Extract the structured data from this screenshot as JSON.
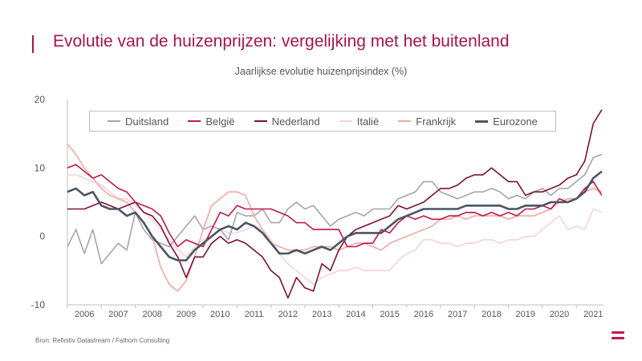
{
  "header": {
    "title": "Evolutie van de huizenprijzen: vergelijking met het buitenland",
    "subtitle": "Jaarlijkse evolutie huizenprijsindex (%)"
  },
  "footer": {
    "source": "Bron: Refinitiv Datastream / Fathom Consulting",
    "menu_icon": "menu-icon"
  },
  "colors": {
    "accent": "#a3164d",
    "Duitsland": "#a6a6a6",
    "België": "#c0184c",
    "Nederland": "#7a1234",
    "Italië": "#f6d3da",
    "Frankrijk": "#f2a9a0",
    "Eurozone": "#4a5563"
  },
  "chart_data": {
    "type": "line",
    "title": "Jaarlijkse evolutie huizenprijsindex (%)",
    "xlabel": "",
    "ylabel": "",
    "xlim": [
      2005.5,
      2021.3
    ],
    "ylim": [
      -10,
      20
    ],
    "y_ticks": [
      20,
      10,
      0,
      -10
    ],
    "x_ticks": [
      2006,
      2007,
      2008,
      2009,
      2010,
      2011,
      2012,
      2013,
      2014,
      2015,
      2016,
      2017,
      2018,
      2019,
      2020,
      2021
    ],
    "legend_position": "top",
    "series": [
      {
        "name": "Duitsland",
        "x": [
          2005.5,
          2005.75,
          2006,
          2006.25,
          2006.5,
          2006.75,
          2007,
          2007.25,
          2007.5,
          2007.75,
          2008,
          2008.25,
          2008.5,
          2008.75,
          2009,
          2009.25,
          2009.5,
          2009.75,
          2010,
          2010.25,
          2010.5,
          2010.75,
          2011,
          2011.25,
          2011.5,
          2011.75,
          2012,
          2012.25,
          2012.5,
          2012.75,
          2013,
          2013.25,
          2013.5,
          2013.75,
          2014,
          2014.25,
          2014.5,
          2014.75,
          2015,
          2015.25,
          2015.5,
          2015.75,
          2016,
          2016.25,
          2016.5,
          2016.75,
          2017,
          2017.25,
          2017.5,
          2017.75,
          2018,
          2018.25,
          2018.5,
          2018.75,
          2019,
          2019.25,
          2019.5,
          2019.75,
          2020,
          2020.25,
          2020.5,
          2020.75,
          2021,
          2021.25
        ],
        "y": [
          -1.5,
          1,
          -2.5,
          1,
          -4,
          -2.5,
          -1,
          -2,
          3.5,
          1,
          -0.5,
          -1,
          -1.5,
          0,
          1.5,
          3,
          1,
          1.5,
          1,
          -0.5,
          3.5,
          3,
          3,
          4,
          2,
          2,
          4,
          5,
          4,
          4.5,
          3,
          1.5,
          2.5,
          3,
          3.5,
          3,
          4,
          4,
          4,
          5.5,
          6,
          6.5,
          8,
          8,
          6.5,
          6,
          5.5,
          6,
          6.5,
          6.5,
          7,
          6.5,
          5.5,
          6,
          5.5,
          6.5,
          7,
          6,
          7,
          7,
          8,
          9,
          11.5,
          12
        ]
      },
      {
        "name": "België",
        "x": [
          2005.5,
          2005.75,
          2006,
          2006.25,
          2006.5,
          2006.75,
          2007,
          2007.25,
          2007.5,
          2007.75,
          2008,
          2008.25,
          2008.5,
          2008.75,
          2009,
          2009.25,
          2009.5,
          2009.75,
          2010,
          2010.25,
          2010.5,
          2010.75,
          2011,
          2011.25,
          2011.5,
          2011.75,
          2012,
          2012.25,
          2012.5,
          2012.75,
          2013,
          2013.25,
          2013.5,
          2013.75,
          2014,
          2014.25,
          2014.5,
          2014.75,
          2015,
          2015.25,
          2015.5,
          2015.75,
          2016,
          2016.25,
          2016.5,
          2016.75,
          2017,
          2017.25,
          2017.5,
          2017.75,
          2018,
          2018.25,
          2018.5,
          2018.75,
          2019,
          2019.25,
          2019.5,
          2019.75,
          2020,
          2020.25,
          2020.5,
          2020.75,
          2021,
          2021.25
        ],
        "y": [
          10,
          10.5,
          9.5,
          8.5,
          9,
          8,
          7,
          6.5,
          5,
          4.5,
          4,
          3,
          0.5,
          -1.5,
          -0.5,
          -1,
          -1.5,
          1,
          3.5,
          3,
          4.5,
          4,
          4,
          4,
          4,
          3.5,
          3,
          2,
          2,
          1,
          1,
          1,
          1,
          -1.5,
          -1.5,
          -1,
          -1,
          1,
          0.5,
          2,
          3,
          2.5,
          3,
          2.5,
          2.5,
          3,
          3,
          3.5,
          3.5,
          3,
          3.5,
          3,
          3.5,
          3,
          4,
          4,
          4.5,
          4,
          5.5,
          5,
          5.5,
          7,
          8,
          6
        ]
      },
      {
        "name": "Nederland",
        "x": [
          2005.5,
          2005.75,
          2006,
          2006.25,
          2006.5,
          2006.75,
          2007,
          2007.25,
          2007.5,
          2007.75,
          2008,
          2008.25,
          2008.5,
          2008.75,
          2009,
          2009.25,
          2009.5,
          2009.75,
          2010,
          2010.25,
          2010.5,
          2010.75,
          2011,
          2011.25,
          2011.5,
          2011.75,
          2012,
          2012.25,
          2012.5,
          2012.75,
          2013,
          2013.25,
          2013.5,
          2013.75,
          2014,
          2014.25,
          2014.5,
          2014.75,
          2015,
          2015.25,
          2015.5,
          2015.75,
          2016,
          2016.25,
          2016.5,
          2016.75,
          2017,
          2017.25,
          2017.5,
          2017.75,
          2018,
          2018.25,
          2018.5,
          2018.75,
          2019,
          2019.25,
          2019.5,
          2019.75,
          2020,
          2020.25,
          2020.5,
          2020.75,
          2021,
          2021.25
        ],
        "y": [
          4,
          4,
          4,
          4.5,
          5,
          4.5,
          4,
          4.5,
          5,
          3.5,
          3,
          1.5,
          -1,
          -3,
          -6,
          -3,
          -3,
          -1,
          0,
          -1,
          -0.5,
          -1,
          -2,
          -3,
          -5,
          -6,
          -9,
          -6,
          -7.5,
          -8,
          -4,
          -5,
          -2,
          0,
          1,
          1.5,
          2,
          2.5,
          3,
          4.5,
          4,
          4.5,
          5,
          6,
          7,
          7,
          7.5,
          8.5,
          9,
          9,
          10,
          9,
          8,
          8,
          6,
          6.5,
          6.5,
          7,
          7.5,
          8.5,
          9,
          11,
          16.5,
          18.5
        ]
      },
      {
        "name": "Italië",
        "x": [
          2005.5,
          2005.75,
          2006,
          2006.25,
          2006.5,
          2006.75,
          2007,
          2007.25,
          2007.5,
          2007.75,
          2008,
          2008.25,
          2008.5,
          2008.75,
          2009,
          2009.25,
          2009.5,
          2009.75,
          2010,
          2010.25,
          2010.5,
          2010.75,
          2011,
          2011.25,
          2011.5,
          2011.75,
          2012,
          2012.25,
          2012.5,
          2012.75,
          2013,
          2013.25,
          2013.5,
          2013.75,
          2014,
          2014.25,
          2014.5,
          2014.75,
          2015,
          2015.25,
          2015.5,
          2015.75,
          2016,
          2016.25,
          2016.5,
          2016.75,
          2017,
          2017.25,
          2017.5,
          2017.75,
          2018,
          2018.25,
          2018.5,
          2018.75,
          2019,
          2019.25,
          2019.5,
          2019.75,
          2020,
          2020.25,
          2020.5,
          2020.75,
          2021,
          2021.25
        ],
        "y": [
          9,
          9,
          8.5,
          8,
          7.5,
          6.5,
          5.5,
          5.5,
          4.5,
          3.5,
          2.5,
          1,
          -0.5,
          -2,
          -3,
          -1.5,
          -0.5,
          0,
          1,
          0.5,
          0.5,
          1,
          1.5,
          1,
          -0.5,
          -2.5,
          -4,
          -5,
          -6,
          -7,
          -6,
          -5.5,
          -5,
          -5,
          -4.5,
          -5,
          -5,
          -5,
          -5,
          -3.5,
          -2.5,
          -2,
          -0.5,
          -0.5,
          -1,
          -1,
          -1.5,
          -1,
          -1,
          -0.5,
          -0.5,
          -1,
          -0.5,
          -0.5,
          0,
          0,
          1,
          2,
          3,
          1,
          1.5,
          1,
          4,
          3.5
        ]
      },
      {
        "name": "Frankrijk",
        "x": [
          2005.5,
          2005.75,
          2006,
          2006.25,
          2006.5,
          2006.75,
          2007,
          2007.25,
          2007.5,
          2007.75,
          2008,
          2008.25,
          2008.5,
          2008.75,
          2009,
          2009.25,
          2009.5,
          2009.75,
          2010,
          2010.25,
          2010.5,
          2010.75,
          2011,
          2011.25,
          2011.5,
          2011.75,
          2012,
          2012.25,
          2012.5,
          2012.75,
          2013,
          2013.25,
          2013.5,
          2013.75,
          2014,
          2014.25,
          2014.5,
          2014.75,
          2015,
          2015.25,
          2015.5,
          2015.75,
          2016,
          2016.25,
          2016.5,
          2016.75,
          2017,
          2017.25,
          2017.5,
          2017.75,
          2018,
          2018.25,
          2018.5,
          2018.75,
          2019,
          2019.25,
          2019.5,
          2019.75,
          2020,
          2020.25,
          2020.5,
          2020.75,
          2021,
          2021.25
        ],
        "y": [
          13.5,
          12,
          10,
          8.5,
          7,
          6,
          5.5,
          5,
          3.5,
          2,
          0,
          -4.5,
          -7,
          -8,
          -6.5,
          -3,
          1,
          4.5,
          5.5,
          6.5,
          6.5,
          6,
          3,
          1,
          -1,
          -1.5,
          -2,
          -2,
          -2,
          -1.5,
          -1.5,
          -1.5,
          -2,
          -1.5,
          -1,
          -1,
          -1.5,
          -2,
          -1,
          -0.5,
          0,
          0.5,
          1,
          1.5,
          2.5,
          2.5,
          3,
          2.5,
          3,
          3,
          3,
          3,
          2.5,
          3,
          3,
          3,
          3.5,
          4,
          5,
          5.5,
          5.5,
          6.5,
          7,
          6.5
        ]
      },
      {
        "name": "Eurozone",
        "x": [
          2005.5,
          2005.75,
          2006,
          2006.25,
          2006.5,
          2006.75,
          2007,
          2007.25,
          2007.5,
          2007.75,
          2008,
          2008.25,
          2008.5,
          2008.75,
          2009,
          2009.25,
          2009.5,
          2009.75,
          2010,
          2010.25,
          2010.5,
          2010.75,
          2011,
          2011.25,
          2011.5,
          2011.75,
          2012,
          2012.25,
          2012.5,
          2012.75,
          2013,
          2013.25,
          2013.5,
          2013.75,
          2014,
          2014.25,
          2014.5,
          2014.75,
          2015,
          2015.25,
          2015.5,
          2015.75,
          2016,
          2016.25,
          2016.5,
          2016.75,
          2017,
          2017.25,
          2017.5,
          2017.75,
          2018,
          2018.25,
          2018.5,
          2018.75,
          2019,
          2019.25,
          2019.5,
          2019.75,
          2020,
          2020.25,
          2020.5,
          2020.75,
          2021,
          2021.25
        ],
        "y": [
          6.5,
          7,
          6,
          6.5,
          4.5,
          4,
          4,
          3,
          3.5,
          2,
          0,
          -1.5,
          -3,
          -3.5,
          -3.5,
          -2,
          -1,
          0,
          1,
          1.5,
          1,
          2,
          1.5,
          0.5,
          -1,
          -2.5,
          -2.5,
          -2,
          -2.5,
          -2,
          -1.5,
          -2,
          -1,
          0,
          0.5,
          0.5,
          0.5,
          0.5,
          1.5,
          2.5,
          3,
          3.5,
          4,
          4,
          4,
          4,
          4,
          4.5,
          4.5,
          4.5,
          4.5,
          4.5,
          4,
          4,
          4.5,
          4.5,
          4.5,
          5,
          5,
          5,
          5.5,
          6.5,
          8.5,
          9.5
        ]
      }
    ]
  }
}
